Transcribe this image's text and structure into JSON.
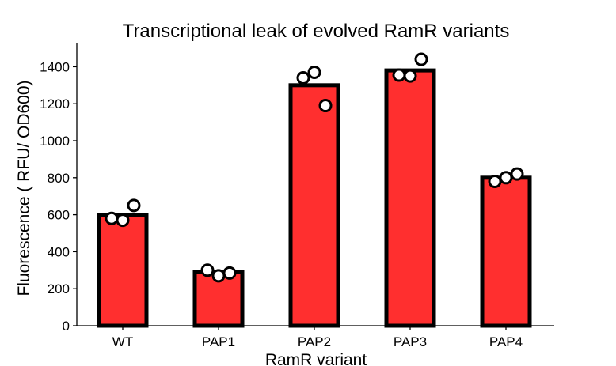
{
  "chart_data": {
    "type": "bar",
    "title": "Transcriptional leak of evolved RamR variants",
    "xlabel": "RamR variant",
    "ylabel": "Fluorescence ( RFU/ OD600)",
    "categories": [
      "WT",
      "PAP1",
      "PAP2",
      "PAP3",
      "PAP4"
    ],
    "values": [
      600,
      290,
      1300,
      1380,
      800
    ],
    "replicates": [
      [
        580,
        570,
        650
      ],
      [
        300,
        270,
        285
      ],
      [
        1340,
        1370,
        1190
      ],
      [
        1355,
        1350,
        1440
      ],
      [
        780,
        800,
        820
      ]
    ],
    "ylim": [
      0,
      1530
    ],
    "yticks": [
      0,
      200,
      400,
      600,
      800,
      1000,
      1200,
      1400
    ],
    "grid": false,
    "bar_color": "#ff2f2f",
    "edge_color": "#000000"
  }
}
